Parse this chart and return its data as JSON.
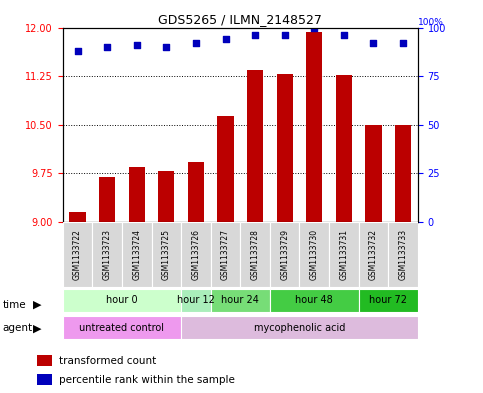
{
  "title": "GDS5265 / ILMN_2148527",
  "samples": [
    "GSM1133722",
    "GSM1133723",
    "GSM1133724",
    "GSM1133725",
    "GSM1133726",
    "GSM1133727",
    "GSM1133728",
    "GSM1133729",
    "GSM1133730",
    "GSM1133731",
    "GSM1133732",
    "GSM1133733"
  ],
  "transformed_counts": [
    9.15,
    9.7,
    9.85,
    9.78,
    9.93,
    10.63,
    11.35,
    11.28,
    11.93,
    11.27,
    10.5,
    10.5
  ],
  "percentile_ranks": [
    88,
    90,
    91,
    90,
    92,
    94,
    96,
    96,
    100,
    96,
    92,
    92
  ],
  "ylim_left": [
    9,
    12
  ],
  "ylim_right": [
    0,
    100
  ],
  "yticks_left": [
    9,
    9.75,
    10.5,
    11.25,
    12
  ],
  "yticks_right": [
    0,
    25,
    50,
    75,
    100
  ],
  "bar_color": "#bb0000",
  "dot_color": "#0000bb",
  "time_groups": [
    {
      "label": "hour 0",
      "start": 0,
      "end": 3,
      "color": "#ccffcc"
    },
    {
      "label": "hour 12",
      "start": 4,
      "end": 4,
      "color": "#aaeebb"
    },
    {
      "label": "hour 24",
      "start": 5,
      "end": 6,
      "color": "#77dd77"
    },
    {
      "label": "hour 48",
      "start": 7,
      "end": 9,
      "color": "#44cc44"
    },
    {
      "label": "hour 72",
      "start": 10,
      "end": 11,
      "color": "#22bb22"
    }
  ],
  "agent_groups": [
    {
      "label": "untreated control",
      "start": 0,
      "end": 3,
      "color": "#ee99ee"
    },
    {
      "label": "mycophenolic acid",
      "start": 4,
      "end": 11,
      "color": "#ddbbdd"
    }
  ],
  "legend_red_label": "transformed count",
  "legend_blue_label": "percentile rank within the sample"
}
